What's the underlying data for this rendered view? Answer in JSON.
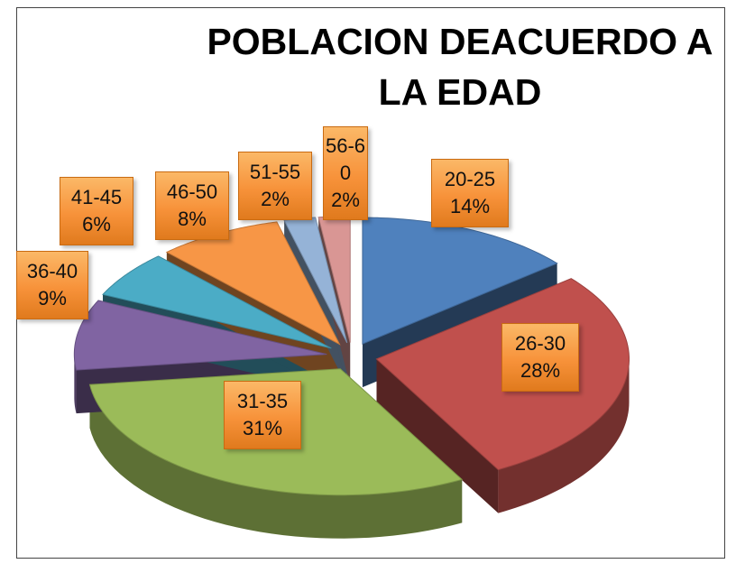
{
  "chart_data": {
    "type": "pie",
    "title": "POBLACION DEACUERDO A LA EDAD",
    "categories": [
      "20-25",
      "26-30",
      "31-35",
      "36-40",
      "41-45",
      "46-50",
      "51-55",
      "56-60"
    ],
    "values": [
      14,
      28,
      31,
      9,
      6,
      8,
      2,
      2
    ],
    "value_labels": [
      "14%",
      "28%",
      "31%",
      "9%",
      "6%",
      "8%",
      "2%",
      "2%"
    ],
    "colors": [
      "#4f81bd",
      "#c0504d",
      "#9bbb59",
      "#8064a2",
      "#4bacc6",
      "#f79646",
      "#95b3d7",
      "#d99694"
    ]
  }
}
